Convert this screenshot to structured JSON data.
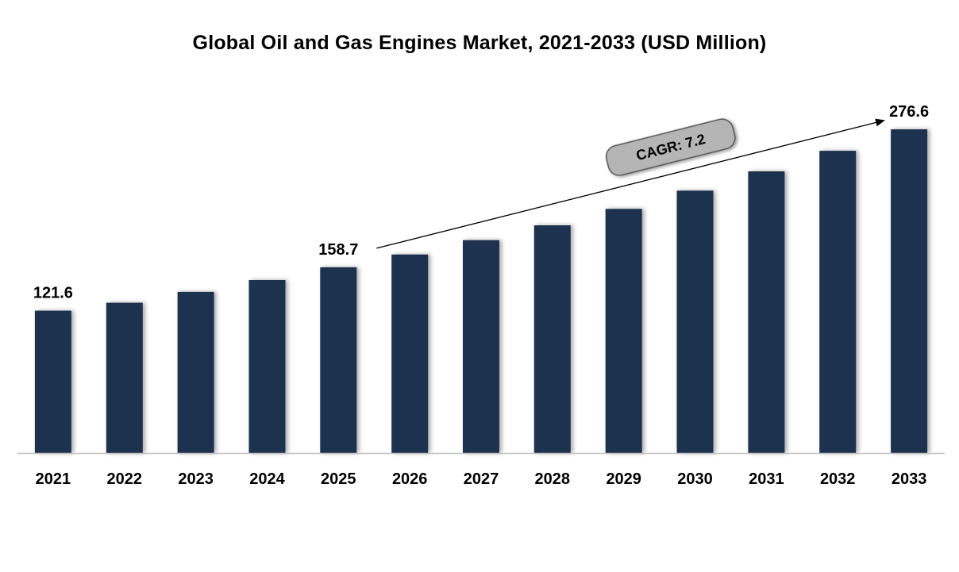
{
  "chart_data": {
    "type": "bar",
    "title": "Global Oil and Gas Engines Market, 2021-2033 (USD Million)",
    "xlabel": "",
    "ylabel": "",
    "categories": [
      "2021",
      "2022",
      "2023",
      "2024",
      "2025",
      "2026",
      "2027",
      "2028",
      "2029",
      "2030",
      "2031",
      "2032",
      "2033"
    ],
    "values": [
      121.6,
      128.4,
      137.7,
      147.8,
      158.7,
      169.6,
      181.9,
      194.6,
      208.6,
      224.2,
      240.7,
      258.2,
      276.6
    ],
    "ylim": [
      0,
      276.6
    ],
    "grid": false,
    "legend": "none",
    "data_labels": [
      {
        "category": "2021",
        "text": "121.6"
      },
      {
        "category": "2025",
        "text": "158.7"
      },
      {
        "category": "2033",
        "text": "276.6"
      }
    ],
    "annotation": {
      "text": "CAGR: 7.2",
      "from_category": "2025",
      "to_category": "2033"
    },
    "colors": {
      "bar": "#1b3350",
      "axis": "#bfbfbf",
      "badge_fill": "#b5b5b5",
      "badge_stroke": "#555555"
    }
  }
}
